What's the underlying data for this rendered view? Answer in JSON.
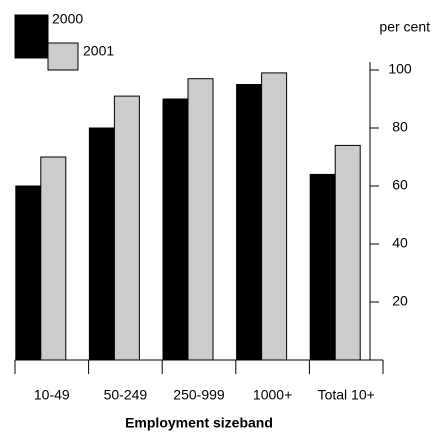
{
  "chart_data": {
    "type": "bar",
    "y_label": "per cent",
    "x_label": "Employment sizeband",
    "categories": [
      "10-49",
      "50-249",
      "250-999",
      "1000+",
      "Total 10+"
    ],
    "series": [
      {
        "name": "2000",
        "color": "#000000",
        "values": [
          60,
          80,
          90,
          95,
          64
        ]
      },
      {
        "name": "2001",
        "color": "#cccccc",
        "values": [
          70,
          91,
          97,
          99,
          74
        ]
      }
    ],
    "ylim": [
      0,
      100
    ],
    "yticks": [
      20,
      40,
      60,
      80,
      100
    ]
  }
}
